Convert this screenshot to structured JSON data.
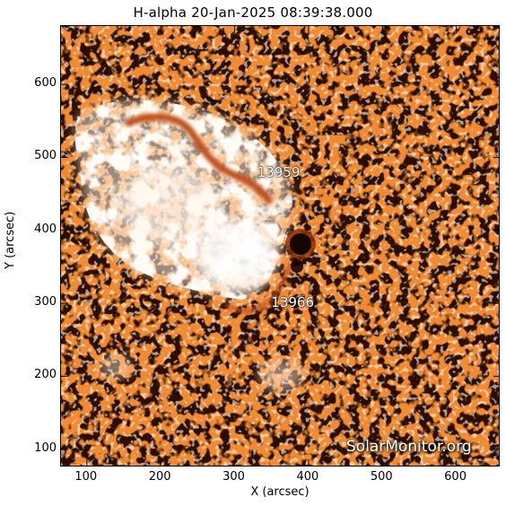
{
  "header": {
    "title": "H-alpha 20-Jan-2025 08:39:38.000"
  },
  "axes": {
    "xlabel": "X (arcsec)",
    "ylabel": "Y (arcsec)",
    "x_ticks": [
      "100",
      "200",
      "300",
      "400",
      "500",
      "600"
    ],
    "y_ticks": [
      "100",
      "200",
      "300",
      "400",
      "500",
      "600"
    ],
    "x_range": [
      65,
      660
    ],
    "y_range": [
      75,
      680
    ]
  },
  "image": {
    "description_colormap": "orange-black-white H-alpha",
    "colors": {
      "background": "#f08a33",
      "dark": "#2a0f00",
      "bright": "#fff8ef",
      "filament": "#c0501a",
      "sunspot": "#140500"
    }
  },
  "regions": [
    {
      "label": "13959",
      "x": 356,
      "y": 478
    },
    {
      "label": "13966",
      "x": 375,
      "y": 300
    }
  ],
  "watermark": {
    "text": "SolarMonitor.org"
  }
}
